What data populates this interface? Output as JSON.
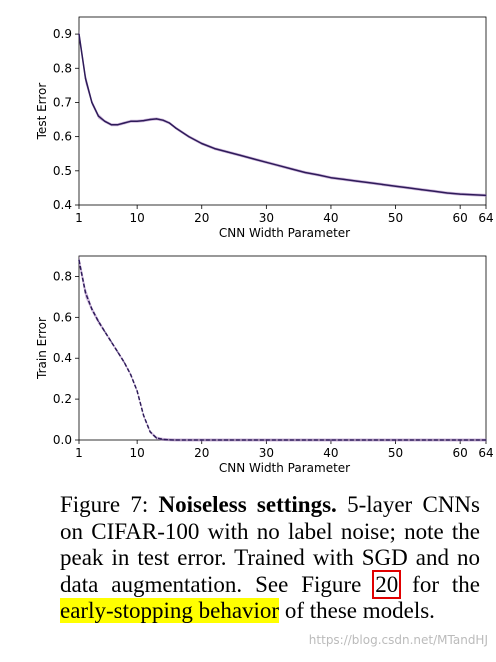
{
  "chart_data": [
    {
      "type": "line",
      "xlabel": "CNN Width Parameter",
      "ylabel": "Test Error",
      "xlim": [
        1,
        64
      ],
      "ylim": [
        0.4,
        0.95
      ],
      "x_ticks": [
        1,
        10,
        20,
        30,
        40,
        50,
        60,
        64
      ],
      "y_ticks": [
        0.4,
        0.5,
        0.6,
        0.7,
        0.8,
        0.9
      ],
      "line_color": "#2e1b59",
      "band_color": "#a67cc0",
      "series": [
        {
          "x": [
            1,
            2,
            3,
            4,
            5,
            6,
            7,
            8,
            9,
            10,
            11,
            12,
            13,
            14,
            15,
            16,
            18,
            20,
            22,
            24,
            26,
            28,
            30,
            32,
            34,
            36,
            38,
            40,
            42,
            44,
            46,
            48,
            50,
            52,
            54,
            56,
            58,
            60,
            62,
            64
          ],
          "values": [
            0.9,
            0.77,
            0.7,
            0.66,
            0.645,
            0.635,
            0.635,
            0.64,
            0.645,
            0.645,
            0.647,
            0.65,
            0.652,
            0.648,
            0.64,
            0.625,
            0.6,
            0.58,
            0.565,
            0.555,
            0.545,
            0.535,
            0.525,
            0.515,
            0.505,
            0.495,
            0.488,
            0.48,
            0.475,
            0.47,
            0.465,
            0.46,
            0.455,
            0.45,
            0.445,
            0.44,
            0.435,
            0.432,
            0.43,
            0.428
          ]
        }
      ]
    },
    {
      "type": "line",
      "xlabel": "CNN Width Parameter",
      "ylabel": "Train Error",
      "xlim": [
        1,
        64
      ],
      "ylim": [
        0.0,
        0.9
      ],
      "x_ticks": [
        1,
        10,
        20,
        30,
        40,
        50,
        60,
        64
      ],
      "y_ticks": [
        0.0,
        0.2,
        0.4,
        0.6,
        0.8
      ],
      "line_style": "dashed",
      "line_color": "#2e1b59",
      "band_color": "#a67cc0",
      "series": [
        {
          "x": [
            1,
            2,
            3,
            4,
            5,
            6,
            7,
            8,
            9,
            10,
            11,
            12,
            13,
            14,
            15,
            16,
            18,
            20,
            24,
            30,
            40,
            50,
            60,
            64
          ],
          "values": [
            0.88,
            0.72,
            0.64,
            0.58,
            0.53,
            0.48,
            0.43,
            0.38,
            0.32,
            0.24,
            0.12,
            0.04,
            0.01,
            0.003,
            0.001,
            0.0,
            0.0,
            0.0,
            0.0,
            0.0,
            0.0,
            0.0,
            0.0,
            0.0
          ]
        }
      ]
    }
  ],
  "caption": {
    "label": "Figure 7:",
    "title": "Noiseless settings.",
    "text_before": "5-layer CNNs on CIFAR-100 with no label noise; note the peak in test error. Trained with SGD and no data augmentation. See Figure",
    "ref": "20",
    "text_mid": "for the",
    "highlight": "early-stopping behavior",
    "text_after": "of these models."
  },
  "watermark": "https://blog.csdn.net/MTandHJ"
}
